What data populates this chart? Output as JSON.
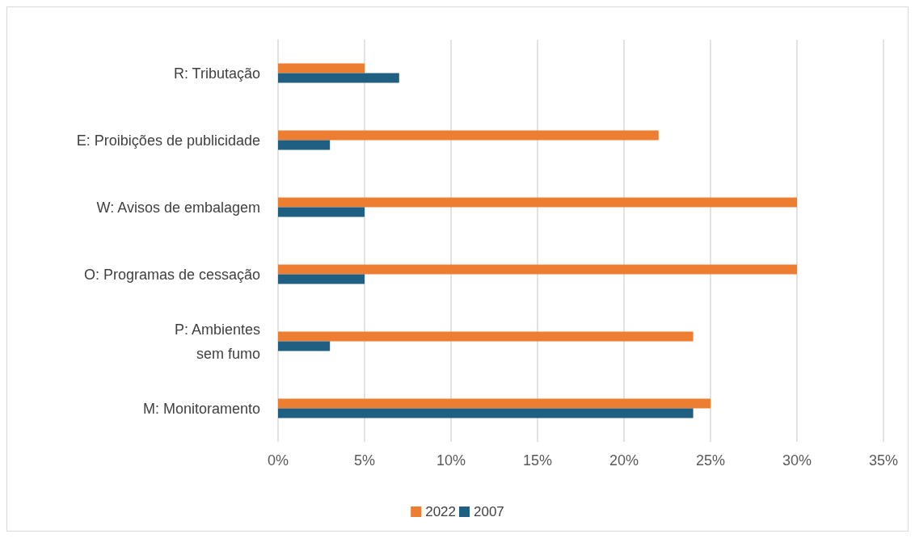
{
  "chart_data": {
    "type": "bar",
    "orientation": "horizontal",
    "categories": [
      "R: Tributação",
      "E: Proibições de publicidade",
      "W: Avisos de embalagem",
      "O: Programas de cessação",
      "P: Ambientes\nsem fumo",
      "M: Monitoramento"
    ],
    "series": [
      {
        "name": "2022",
        "color": "#ed7d31",
        "values": [
          5,
          22,
          30,
          30,
          24,
          25
        ]
      },
      {
        "name": "2007",
        "color": "#1f5f82",
        "values": [
          7,
          3,
          5,
          5,
          3,
          24
        ]
      }
    ],
    "xlim": [
      0,
      35
    ],
    "xticks": [
      {
        "value": 0,
        "label": "0%"
      },
      {
        "value": 5,
        "label": "5%"
      },
      {
        "value": 10,
        "label": "10%"
      },
      {
        "value": 15,
        "label": "15%"
      },
      {
        "value": 20,
        "label": "20%"
      },
      {
        "value": 25,
        "label": "25%"
      },
      {
        "value": 30,
        "label": "30%"
      },
      {
        "value": 35,
        "label": "35%"
      }
    ],
    "grid": "x",
    "legend": "bottom"
  }
}
